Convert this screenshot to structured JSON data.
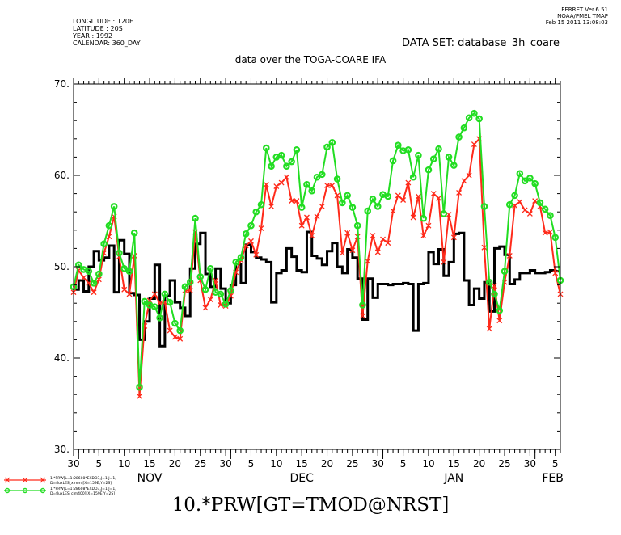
{
  "header": {
    "left_lines": [
      "LONGITUDE : 120E",
      "LATITUDE : 20S",
      "YEAR : 1992",
      "CALENDAR: 360_DAY"
    ],
    "right_lines": [
      "FERRET  Ver.6.51",
      "NOAA/PMEL TMAP",
      "Feb 15 2011 13:08:03"
    ],
    "dataset": "DATA SET: database_3h_coare",
    "subtitle": "data over the TOGA-COARE IFA"
  },
  "bottom_title": "10.*PRW[GT=TMOD@NRST]",
  "chart_data": {
    "type": "line",
    "title": "data over the TOGA-COARE IFA",
    "xlabel": "",
    "ylabel": "",
    "ylim": [
      30,
      70
    ],
    "y_ticks": [
      "30.",
      "40.",
      "50.",
      "60.",
      "70."
    ],
    "x_day_ticks": [
      "30",
      "5",
      "10",
      "15",
      "20",
      "25",
      "30",
      "5",
      "10",
      "15",
      "20",
      "25",
      "30",
      "5",
      "10",
      "15",
      "20",
      "25",
      "30",
      "5"
    ],
    "x_month_labels": [
      "NOV",
      "DEC",
      "JAN",
      "FEB"
    ],
    "x_range_days": [
      0,
      96
    ],
    "colors": {
      "black": "#000000",
      "red": "#ff2a1a",
      "green": "#22dd22"
    },
    "series": [
      {
        "name": "",
        "color": "#000000",
        "style": "step",
        "x": [
          0,
          1,
          2,
          3,
          4,
          5,
          6,
          7,
          8,
          9,
          10,
          11,
          12,
          13,
          14,
          15,
          16,
          17,
          18,
          19,
          20,
          21,
          22,
          23,
          24,
          25,
          26,
          27,
          28,
          29,
          30,
          31,
          32,
          33,
          34,
          35,
          36,
          37,
          38,
          39,
          40,
          41,
          42,
          43,
          44,
          45,
          46,
          47,
          48,
          49,
          50,
          51,
          52,
          53,
          54,
          55,
          56,
          57,
          58,
          59,
          60,
          61,
          62,
          63,
          64,
          65,
          66,
          67,
          68,
          69,
          70,
          71,
          72,
          73,
          74,
          75,
          76,
          77,
          78,
          79,
          80,
          81,
          82,
          83,
          84,
          85,
          86,
          87,
          88,
          89,
          90,
          91,
          92,
          93,
          94,
          95,
          96
        ],
        "y": [
          47.5,
          48.5,
          47.3,
          50.0,
          51.7,
          50.7,
          51.0,
          52.3,
          47.2,
          52.9,
          51.4,
          47.1,
          46.9,
          42.0,
          44.0,
          46.5,
          50.2,
          41.3,
          46.8,
          48.5,
          46.1,
          45.5,
          44.6,
          49.8,
          52.5,
          53.7,
          49.2,
          47.8,
          49.8,
          47.6,
          46.0,
          48.0,
          50.3,
          48.2,
          52.4,
          51.6,
          51.0,
          50.8,
          50.5,
          46.1,
          49.3,
          49.6,
          52.0,
          51.1,
          49.6,
          49.4,
          53.8,
          51.2,
          50.9,
          50.2,
          51.7,
          52.6,
          50.0,
          49.3,
          51.9,
          51.0,
          48.7,
          44.2,
          48.7,
          46.6,
          48.1,
          48.1,
          48.0,
          48.1,
          48.1,
          48.2,
          48.1,
          43.0,
          48.1,
          48.2,
          51.6,
          50.3,
          51.9,
          49.0,
          50.5,
          53.6,
          53.7,
          48.5,
          45.8,
          47.6,
          46.5,
          48.3,
          45.1,
          52.0,
          52.2,
          51.3,
          48.1,
          48.6,
          49.3,
          49.3,
          49.6,
          49.3,
          49.3,
          49.4,
          49.6,
          49.5,
          49.5
        ]
      },
      {
        "name": "",
        "color": "#ff2a1a",
        "style": "markers-x",
        "x": [
          0,
          1,
          2,
          3,
          4,
          5,
          6,
          7,
          8,
          9,
          10,
          11,
          12,
          13,
          14,
          15,
          16,
          17,
          18,
          19,
          20,
          21,
          22,
          23,
          24,
          25,
          26,
          27,
          28,
          29,
          30,
          31,
          32,
          33,
          34,
          35,
          36,
          37,
          38,
          39,
          40,
          41,
          42,
          43,
          44,
          45,
          46,
          47,
          48,
          49,
          50,
          51,
          52,
          53,
          54,
          55,
          56,
          57,
          58,
          59,
          60,
          61,
          62,
          63,
          64,
          65,
          66,
          67,
          68,
          69,
          70,
          71,
          72,
          73,
          74,
          75,
          76,
          77,
          78,
          79,
          80,
          81,
          82,
          83,
          84,
          85,
          86,
          87,
          88,
          89,
          90,
          91,
          92,
          93,
          94,
          95,
          96
        ],
        "y": [
          47.2,
          49.6,
          48.8,
          48.2,
          47.2,
          48.6,
          51.5,
          53.3,
          55.5,
          51.1,
          47.5,
          47.0,
          51.2,
          35.8,
          43.5,
          46.3,
          47.0,
          46.0,
          46.1,
          43.0,
          42.3,
          42.1,
          47.4,
          47.4,
          53.8,
          48.5,
          45.5,
          46.4,
          48.5,
          45.8,
          45.7,
          46.8,
          49.4,
          50.7,
          52.3,
          52.8,
          51.3,
          54.2,
          59.0,
          56.6,
          58.8,
          59.2,
          59.8,
          57.2,
          57.2,
          54.5,
          55.4,
          53.4,
          55.5,
          56.6,
          58.9,
          58.9,
          57.8,
          51.5,
          53.7,
          51.8,
          53.3,
          44.6,
          50.6,
          53.4,
          51.6,
          53.0,
          52.6,
          56.1,
          57.8,
          57.3,
          59.2,
          55.4,
          57.7,
          53.4,
          54.5,
          58.0,
          57.5,
          50.5,
          55.7,
          53.2,
          58.1,
          59.4,
          60.0,
          63.4,
          64.0,
          52.1,
          43.2,
          47.9,
          44.1,
          48.3,
          51.2,
          56.7,
          57.1,
          56.2,
          55.8,
          57.2,
          56.6,
          53.7,
          53.8,
          49.3,
          47.0
        ]
      },
      {
        "name": "",
        "color": "#22dd22",
        "style": "markers-o",
        "x": [
          0,
          1,
          2,
          3,
          4,
          5,
          6,
          7,
          8,
          9,
          10,
          11,
          12,
          13,
          14,
          15,
          16,
          17,
          18,
          19,
          20,
          21,
          22,
          23,
          24,
          25,
          26,
          27,
          28,
          29,
          30,
          31,
          32,
          33,
          34,
          35,
          36,
          37,
          38,
          39,
          40,
          41,
          42,
          43,
          44,
          45,
          46,
          47,
          48,
          49,
          50,
          51,
          52,
          53,
          54,
          55,
          56,
          57,
          58,
          59,
          60,
          61,
          62,
          63,
          64,
          65,
          66,
          67,
          68,
          69,
          70,
          71,
          72,
          73,
          74,
          75,
          76,
          77,
          78,
          79,
          80,
          81,
          82,
          83,
          84,
          85,
          86,
          87,
          88,
          89,
          90,
          91,
          92,
          93,
          94,
          95,
          96
        ],
        "y": [
          47.8,
          50.2,
          49.7,
          49.5,
          48.2,
          49.2,
          52.5,
          54.5,
          56.6,
          51.5,
          49.8,
          49.5,
          53.7,
          36.8,
          46.2,
          45.8,
          45.6,
          44.4,
          47.0,
          46.1,
          43.8,
          43.0,
          47.8,
          48.3,
          55.3,
          48.9,
          47.5,
          49.8,
          47.2,
          47.0,
          45.9,
          47.4,
          50.5,
          51.0,
          53.6,
          54.5,
          56.0,
          56.8,
          63.0,
          61.0,
          62.0,
          62.2,
          61.0,
          61.5,
          62.8,
          56.5,
          59.0,
          58.3,
          59.8,
          60.1,
          63.1,
          63.6,
          59.6,
          57.0,
          57.8,
          56.5,
          54.5,
          45.8,
          56.1,
          57.4,
          56.6,
          57.9,
          57.7,
          61.6,
          63.3,
          62.7,
          62.8,
          59.8,
          62.2,
          55.3,
          60.6,
          61.8,
          62.9,
          55.8,
          62.0,
          61.1,
          64.2,
          65.2,
          66.3,
          66.8,
          66.2,
          56.6,
          48.3,
          47.0,
          45.2,
          49.5,
          56.8,
          57.8,
          60.2,
          59.4,
          59.7,
          59.1,
          57.0,
          56.3,
          55.6,
          53.2,
          48.5
        ]
      }
    ]
  },
  "legend": [
    {
      "label_line1": "1.*PRW[L=1:28608*EXDO3,J=1,J=1,",
      "label_line2": "D=fluxLES_ximm][X=159E,Y=2S]"
    },
    {
      "label_line1": "1.*PRW[L=1:28608*EXDO3,J=1,J=1,",
      "label_line2": "D=fluxLES_cim400][X=159E,Y=2S]"
    }
  ]
}
